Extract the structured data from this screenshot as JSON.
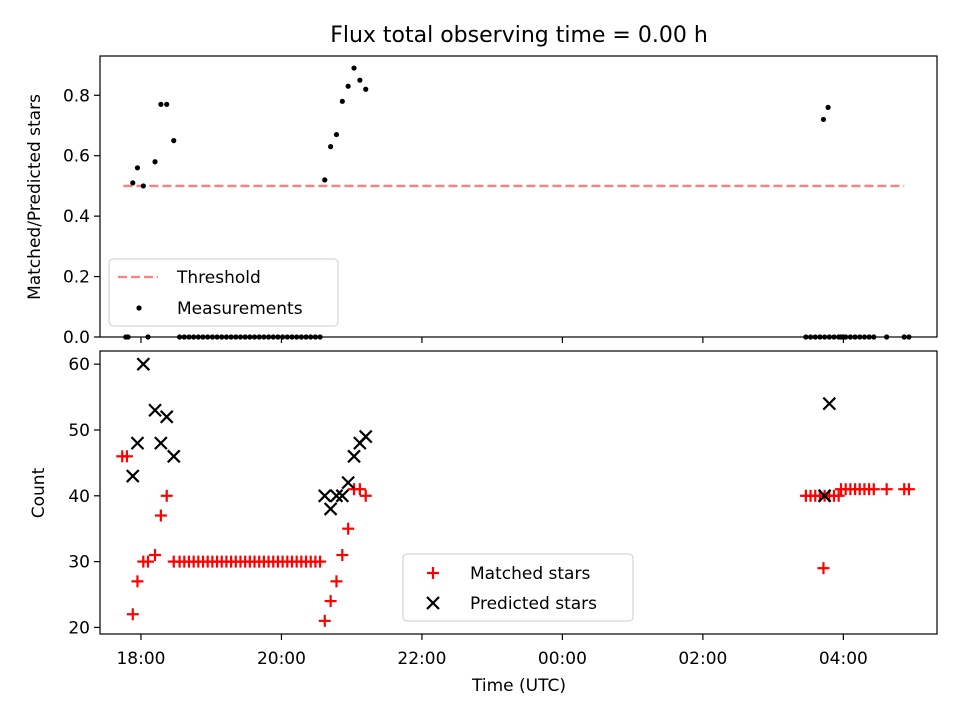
{
  "figure": {
    "title": "Flux total observing time = 0.00 h"
  },
  "colors": {
    "threshold": "#ff7f7f",
    "measurements": "#000000",
    "matched": "#ff0000",
    "predicted": "#000000"
  },
  "chart_data": [
    {
      "type": "scatter",
      "title": "Flux total observing time = 0.00 h",
      "xlabel": "",
      "ylabel": "Matched/Predicted stars",
      "xlim": [
        "17:25",
        "05:20"
      ],
      "ylim": [
        0,
        0.93
      ],
      "yticks": [
        0.0,
        0.2,
        0.4,
        0.6,
        0.8
      ],
      "yticklabels": [
        "0.0",
        "0.2",
        "0.4",
        "0.6",
        "0.8"
      ],
      "legend": {
        "placement": "lower-left",
        "entries": [
          "Threshold",
          "Measurements"
        ]
      },
      "threshold": {
        "name": "Threshold",
        "value": 0.5,
        "x_start": "17:45",
        "x_end": "04:52"
      },
      "series": [
        {
          "name": "Measurements",
          "marker": "dot",
          "points": [
            [
              "17:47",
              0.0
            ],
            [
              "17:49",
              0.0
            ],
            [
              "17:53",
              0.51
            ],
            [
              "17:57",
              0.56
            ],
            [
              "18:02",
              0.5
            ],
            [
              "18:06",
              0.0
            ],
            [
              "18:12",
              0.58
            ],
            [
              "18:17",
              0.77
            ],
            [
              "18:22",
              0.77
            ],
            [
              "18:28",
              0.65
            ],
            [
              "18:33",
              0.0
            ],
            [
              "18:37",
              0.0
            ],
            [
              "18:41",
              0.0
            ],
            [
              "18:45",
              0.0
            ],
            [
              "18:49",
              0.0
            ],
            [
              "18:53",
              0.0
            ],
            [
              "18:57",
              0.0
            ],
            [
              "19:01",
              0.0
            ],
            [
              "19:05",
              0.0
            ],
            [
              "19:09",
              0.0
            ],
            [
              "19:13",
              0.0
            ],
            [
              "19:17",
              0.0
            ],
            [
              "19:21",
              0.0
            ],
            [
              "19:25",
              0.0
            ],
            [
              "19:29",
              0.0
            ],
            [
              "19:33",
              0.0
            ],
            [
              "19:37",
              0.0
            ],
            [
              "19:41",
              0.0
            ],
            [
              "19:45",
              0.0
            ],
            [
              "19:49",
              0.0
            ],
            [
              "19:53",
              0.0
            ],
            [
              "19:57",
              0.0
            ],
            [
              "20:01",
              0.0
            ],
            [
              "20:05",
              0.0
            ],
            [
              "20:09",
              0.0
            ],
            [
              "20:13",
              0.0
            ],
            [
              "20:17",
              0.0
            ],
            [
              "20:21",
              0.0
            ],
            [
              "20:25",
              0.0
            ],
            [
              "20:29",
              0.0
            ],
            [
              "20:33",
              0.0
            ],
            [
              "20:37",
              0.52
            ],
            [
              "20:42",
              0.63
            ],
            [
              "20:47",
              0.67
            ],
            [
              "20:52",
              0.78
            ],
            [
              "20:57",
              0.83
            ],
            [
              "21:02",
              0.89
            ],
            [
              "21:07",
              0.85
            ],
            [
              "21:12",
              0.82
            ],
            [
              "03:28",
              0.0
            ],
            [
              "03:32",
              0.0
            ],
            [
              "03:36",
              0.0
            ],
            [
              "03:40",
              0.0
            ],
            [
              "03:44",
              0.0
            ],
            [
              "03:48",
              0.0
            ],
            [
              "03:52",
              0.0
            ],
            [
              "03:56",
              0.0
            ],
            [
              "04:00",
              0.0
            ],
            [
              "03:43",
              0.72
            ],
            [
              "03:47",
              0.76
            ],
            [
              "03:58",
              0.0
            ],
            [
              "04:02",
              0.0
            ],
            [
              "04:06",
              0.0
            ],
            [
              "04:10",
              0.0
            ],
            [
              "04:14",
              0.0
            ],
            [
              "04:18",
              0.0
            ],
            [
              "04:22",
              0.0
            ],
            [
              "04:26",
              0.0
            ],
            [
              "04:37",
              0.0
            ],
            [
              "04:52",
              0.0
            ],
            [
              "04:56",
              0.0
            ]
          ]
        }
      ]
    },
    {
      "type": "scatter",
      "xlabel": "Time (UTC)",
      "ylabel": "Count",
      "xlim": [
        "17:25",
        "05:20"
      ],
      "ylim": [
        19,
        62
      ],
      "yticks": [
        20,
        30,
        40,
        50,
        60
      ],
      "yticklabels": [
        "20",
        "30",
        "40",
        "50",
        "60"
      ],
      "xticks": [
        "18:00",
        "20:00",
        "22:00",
        "00:00",
        "02:00",
        "04:00"
      ],
      "xticklabels": [
        "18:00",
        "20:00",
        "22:00",
        "00:00",
        "02:00",
        "04:00"
      ],
      "legend": {
        "placement": "lower-center",
        "entries": [
          "Matched stars",
          "Predicted stars"
        ]
      },
      "series": [
        {
          "name": "Matched stars",
          "marker": "plus",
          "points": [
            [
              "17:44",
              46
            ],
            [
              "17:48",
              46
            ],
            [
              "17:53",
              22
            ],
            [
              "17:57",
              27
            ],
            [
              "18:02",
              30
            ],
            [
              "18:06",
              30
            ],
            [
              "18:12",
              31
            ],
            [
              "18:17",
              37
            ],
            [
              "18:22",
              40
            ],
            [
              "18:28",
              30
            ],
            [
              "18:33",
              30
            ],
            [
              "18:37",
              30
            ],
            [
              "18:41",
              30
            ],
            [
              "18:45",
              30
            ],
            [
              "18:49",
              30
            ],
            [
              "18:53",
              30
            ],
            [
              "18:57",
              30
            ],
            [
              "19:01",
              30
            ],
            [
              "19:05",
              30
            ],
            [
              "19:09",
              30
            ],
            [
              "19:13",
              30
            ],
            [
              "19:17",
              30
            ],
            [
              "19:21",
              30
            ],
            [
              "19:25",
              30
            ],
            [
              "19:29",
              30
            ],
            [
              "19:33",
              30
            ],
            [
              "19:37",
              30
            ],
            [
              "19:41",
              30
            ],
            [
              "19:45",
              30
            ],
            [
              "19:49",
              30
            ],
            [
              "19:53",
              30
            ],
            [
              "19:57",
              30
            ],
            [
              "20:01",
              30
            ],
            [
              "20:05",
              30
            ],
            [
              "20:09",
              30
            ],
            [
              "20:13",
              30
            ],
            [
              "20:17",
              30
            ],
            [
              "20:21",
              30
            ],
            [
              "20:25",
              30
            ],
            [
              "20:29",
              30
            ],
            [
              "20:33",
              30
            ],
            [
              "20:37",
              21
            ],
            [
              "20:42",
              24
            ],
            [
              "20:47",
              27
            ],
            [
              "20:52",
              31
            ],
            [
              "20:57",
              35
            ],
            [
              "21:02",
              41
            ],
            [
              "21:07",
              41
            ],
            [
              "21:12",
              40
            ],
            [
              "03:28",
              40
            ],
            [
              "03:32",
              40
            ],
            [
              "03:36",
              40
            ],
            [
              "03:40",
              40
            ],
            [
              "03:44",
              40
            ],
            [
              "03:48",
              40
            ],
            [
              "03:52",
              40
            ],
            [
              "03:56",
              40
            ],
            [
              "03:43",
              29
            ],
            [
              "03:58",
              41
            ],
            [
              "04:02",
              41
            ],
            [
              "04:06",
              41
            ],
            [
              "04:10",
              41
            ],
            [
              "04:14",
              41
            ],
            [
              "04:18",
              41
            ],
            [
              "04:22",
              41
            ],
            [
              "04:26",
              41
            ],
            [
              "04:37",
              41
            ],
            [
              "04:52",
              41
            ],
            [
              "04:56",
              41
            ]
          ]
        },
        {
          "name": "Predicted stars",
          "marker": "x",
          "points": [
            [
              "17:53",
              43
            ],
            [
              "17:57",
              48
            ],
            [
              "18:02",
              60
            ],
            [
              "18:12",
              53
            ],
            [
              "18:17",
              48
            ],
            [
              "18:22",
              52
            ],
            [
              "18:28",
              46
            ],
            [
              "20:37",
              40
            ],
            [
              "20:42",
              38
            ],
            [
              "20:47",
              40
            ],
            [
              "20:52",
              40
            ],
            [
              "20:57",
              42
            ],
            [
              "21:02",
              46
            ],
            [
              "21:07",
              48
            ],
            [
              "21:12",
              49
            ],
            [
              "03:44",
              40
            ],
            [
              "03:48",
              54
            ]
          ]
        }
      ]
    }
  ]
}
